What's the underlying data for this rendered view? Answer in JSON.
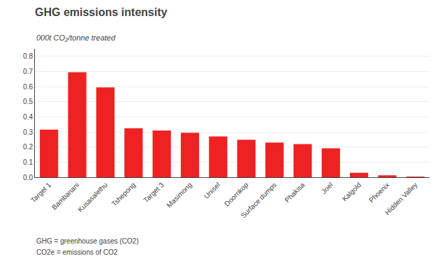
{
  "chart_data": {
    "type": "bar",
    "title": "GHG emissions intensity",
    "subtitle": "000t CO₂/tonne treated",
    "categories": [
      "Target 1",
      "Bambanani",
      "Kusasalethu",
      "Tshepong",
      "Target 3",
      "Masimong",
      "Unisel",
      "Doornkop",
      "Surface dumps",
      "Phakisa",
      "Joel",
      "Kalgold",
      "Phoenix",
      "Hidden Valley"
    ],
    "values": [
      0.315,
      0.695,
      0.595,
      0.325,
      0.31,
      0.295,
      0.27,
      0.248,
      0.23,
      0.22,
      0.192,
      0.03,
      0.013,
      0.001
    ],
    "color": "#ee2222",
    "ylim": [
      0,
      0.85
    ],
    "yticks": [
      {
        "value": 0,
        "label": "0.0"
      },
      0.1,
      0.2,
      0.3,
      0.4,
      0.5,
      0.6,
      0.7,
      0.8
    ],
    "grid": true,
    "annotations": [
      "GHG = greenhouse gases (CO2)",
      "CO2e = emissions of CO2"
    ]
  }
}
